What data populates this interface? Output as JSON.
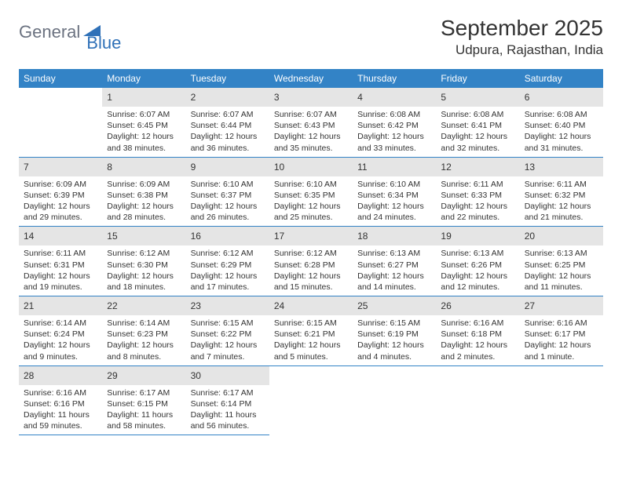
{
  "logo": {
    "text1": "General",
    "text2": "Blue",
    "color1": "#6b7280",
    "color2": "#2f71b8",
    "icon_color": "#2f71b8"
  },
  "title": "September 2025",
  "location": "Udpura, Rajasthan, India",
  "header_bg": "#3383c6",
  "header_fg": "#ffffff",
  "daynum_bg": "#e5e5e5",
  "border_color": "#3383c6",
  "weekdays": [
    "Sunday",
    "Monday",
    "Tuesday",
    "Wednesday",
    "Thursday",
    "Friday",
    "Saturday"
  ],
  "start_offset": 1,
  "days": [
    {
      "n": 1,
      "sr": "6:07 AM",
      "ss": "6:45 PM",
      "dl": "12 hours and 38 minutes."
    },
    {
      "n": 2,
      "sr": "6:07 AM",
      "ss": "6:44 PM",
      "dl": "12 hours and 36 minutes."
    },
    {
      "n": 3,
      "sr": "6:07 AM",
      "ss": "6:43 PM",
      "dl": "12 hours and 35 minutes."
    },
    {
      "n": 4,
      "sr": "6:08 AM",
      "ss": "6:42 PM",
      "dl": "12 hours and 33 minutes."
    },
    {
      "n": 5,
      "sr": "6:08 AM",
      "ss": "6:41 PM",
      "dl": "12 hours and 32 minutes."
    },
    {
      "n": 6,
      "sr": "6:08 AM",
      "ss": "6:40 PM",
      "dl": "12 hours and 31 minutes."
    },
    {
      "n": 7,
      "sr": "6:09 AM",
      "ss": "6:39 PM",
      "dl": "12 hours and 29 minutes."
    },
    {
      "n": 8,
      "sr": "6:09 AM",
      "ss": "6:38 PM",
      "dl": "12 hours and 28 minutes."
    },
    {
      "n": 9,
      "sr": "6:10 AM",
      "ss": "6:37 PM",
      "dl": "12 hours and 26 minutes."
    },
    {
      "n": 10,
      "sr": "6:10 AM",
      "ss": "6:35 PM",
      "dl": "12 hours and 25 minutes."
    },
    {
      "n": 11,
      "sr": "6:10 AM",
      "ss": "6:34 PM",
      "dl": "12 hours and 24 minutes."
    },
    {
      "n": 12,
      "sr": "6:11 AM",
      "ss": "6:33 PM",
      "dl": "12 hours and 22 minutes."
    },
    {
      "n": 13,
      "sr": "6:11 AM",
      "ss": "6:32 PM",
      "dl": "12 hours and 21 minutes."
    },
    {
      "n": 14,
      "sr": "6:11 AM",
      "ss": "6:31 PM",
      "dl": "12 hours and 19 minutes."
    },
    {
      "n": 15,
      "sr": "6:12 AM",
      "ss": "6:30 PM",
      "dl": "12 hours and 18 minutes."
    },
    {
      "n": 16,
      "sr": "6:12 AM",
      "ss": "6:29 PM",
      "dl": "12 hours and 17 minutes."
    },
    {
      "n": 17,
      "sr": "6:12 AM",
      "ss": "6:28 PM",
      "dl": "12 hours and 15 minutes."
    },
    {
      "n": 18,
      "sr": "6:13 AM",
      "ss": "6:27 PM",
      "dl": "12 hours and 14 minutes."
    },
    {
      "n": 19,
      "sr": "6:13 AM",
      "ss": "6:26 PM",
      "dl": "12 hours and 12 minutes."
    },
    {
      "n": 20,
      "sr": "6:13 AM",
      "ss": "6:25 PM",
      "dl": "12 hours and 11 minutes."
    },
    {
      "n": 21,
      "sr": "6:14 AM",
      "ss": "6:24 PM",
      "dl": "12 hours and 9 minutes."
    },
    {
      "n": 22,
      "sr": "6:14 AM",
      "ss": "6:23 PM",
      "dl": "12 hours and 8 minutes."
    },
    {
      "n": 23,
      "sr": "6:15 AM",
      "ss": "6:22 PM",
      "dl": "12 hours and 7 minutes."
    },
    {
      "n": 24,
      "sr": "6:15 AM",
      "ss": "6:21 PM",
      "dl": "12 hours and 5 minutes."
    },
    {
      "n": 25,
      "sr": "6:15 AM",
      "ss": "6:19 PM",
      "dl": "12 hours and 4 minutes."
    },
    {
      "n": 26,
      "sr": "6:16 AM",
      "ss": "6:18 PM",
      "dl": "12 hours and 2 minutes."
    },
    {
      "n": 27,
      "sr": "6:16 AM",
      "ss": "6:17 PM",
      "dl": "12 hours and 1 minute."
    },
    {
      "n": 28,
      "sr": "6:16 AM",
      "ss": "6:16 PM",
      "dl": "11 hours and 59 minutes."
    },
    {
      "n": 29,
      "sr": "6:17 AM",
      "ss": "6:15 PM",
      "dl": "11 hours and 58 minutes."
    },
    {
      "n": 30,
      "sr": "6:17 AM",
      "ss": "6:14 PM",
      "dl": "11 hours and 56 minutes."
    }
  ],
  "labels": {
    "sunrise": "Sunrise:",
    "sunset": "Sunset:",
    "daylight": "Daylight:"
  }
}
